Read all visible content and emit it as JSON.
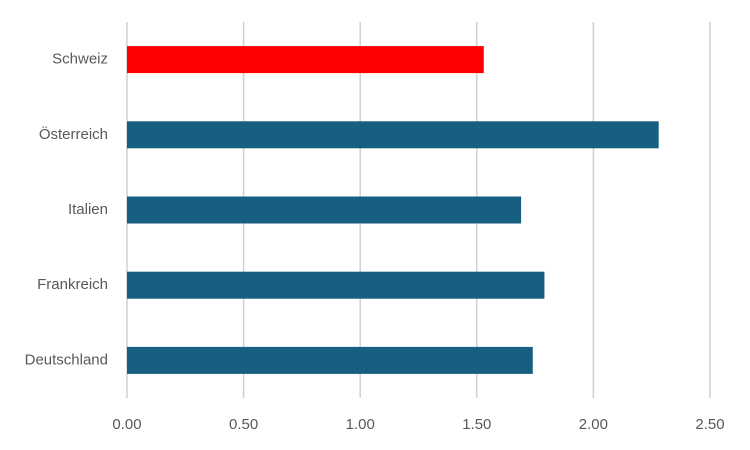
{
  "chart_data": {
    "type": "bar",
    "orientation": "horizontal",
    "categories": [
      "Schweiz",
      "Österreich",
      "Italien",
      "Frankreich",
      "Deutschland"
    ],
    "values": [
      1.53,
      2.28,
      1.69,
      1.79,
      1.74
    ],
    "colors": [
      "#ff0000",
      "#175f80",
      "#175f80",
      "#175f80",
      "#175f80"
    ],
    "xlim": [
      0,
      2.5
    ],
    "xticks": [
      {
        "value": 0,
        "label": "0.00"
      },
      {
        "value": 0.5,
        "label": "0.50"
      },
      {
        "value": 1,
        "label": "1.00"
      },
      {
        "value": 1.5,
        "label": "1.50"
      },
      {
        "value": 2,
        "label": "2.00"
      },
      {
        "value": 2.5,
        "label": "2.50"
      }
    ],
    "grid": true
  }
}
